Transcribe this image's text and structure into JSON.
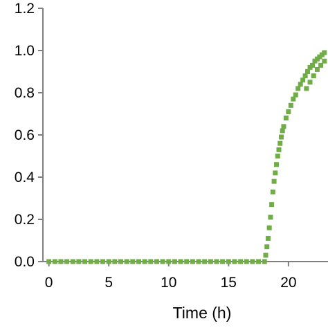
{
  "chart_data": {
    "type": "scatter",
    "title": "",
    "xlabel": "Time (h)",
    "ylabel": "",
    "xlim": [
      -0.5,
      23.3
    ],
    "ylim": [
      0.0,
      1.2
    ],
    "x_ticks": [
      0,
      5,
      10,
      15,
      20
    ],
    "x_tick_labels": [
      "0",
      "5",
      "10",
      "15",
      "20"
    ],
    "y_ticks": [
      0.0,
      0.2,
      0.4,
      0.6,
      0.8,
      1.0,
      1.2
    ],
    "y_tick_labels": [
      "0.0",
      "0.2",
      "0.4",
      "0.6",
      "0.8",
      "1.0",
      "1.2"
    ],
    "grid": false,
    "legend": "none",
    "marker_color": "#70ad47",
    "series": [
      {
        "x": [
          0.0,
          0.5,
          1.0,
          1.5,
          2.0,
          2.5,
          3.0,
          3.5,
          4.0,
          4.5,
          5.0,
          5.5,
          6.0,
          6.5,
          7.0,
          7.5,
          8.0,
          8.5,
          9.0,
          9.5,
          10.0,
          10.5,
          11.0,
          11.5,
          12.0,
          12.5,
          13.0,
          13.5,
          14.0,
          14.5,
          15.0,
          15.5,
          16.0,
          16.5,
          17.0,
          17.5,
          18.0,
          18.1,
          18.2,
          18.3,
          18.4,
          18.5,
          18.6,
          18.7,
          18.8,
          18.9,
          19.0,
          19.1,
          19.2,
          19.3,
          19.4,
          19.5,
          19.6,
          19.8,
          20.0,
          20.2,
          20.4,
          20.6,
          20.8,
          21.0,
          21.2,
          21.4,
          21.6,
          21.8,
          22.0,
          22.2,
          22.4,
          22.6,
          22.8,
          23.0,
          21.5,
          21.8,
          22.1,
          22.4,
          22.7,
          23.0
        ],
        "y": [
          0.0,
          0.0,
          0.0,
          0.0,
          0.0,
          0.0,
          0.0,
          0.0,
          0.0,
          0.0,
          0.0,
          0.0,
          0.0,
          0.0,
          0.0,
          0.0,
          0.0,
          0.0,
          0.0,
          0.0,
          0.0,
          0.0,
          0.0,
          0.0,
          0.0,
          0.0,
          0.0,
          0.0,
          0.0,
          0.0,
          0.0,
          0.0,
          0.0,
          0.0,
          0.0,
          0.0,
          0.0,
          0.03,
          0.07,
          0.11,
          0.16,
          0.21,
          0.27,
          0.33,
          0.38,
          0.42,
          0.46,
          0.5,
          0.53,
          0.56,
          0.59,
          0.62,
          0.64,
          0.68,
          0.71,
          0.74,
          0.77,
          0.79,
          0.82,
          0.84,
          0.86,
          0.88,
          0.9,
          0.92,
          0.93,
          0.95,
          0.96,
          0.97,
          0.98,
          0.99,
          0.82,
          0.85,
          0.88,
          0.91,
          0.93,
          0.95
        ]
      }
    ]
  }
}
